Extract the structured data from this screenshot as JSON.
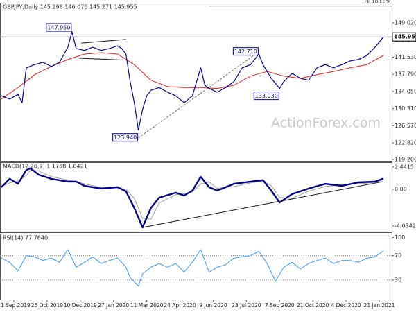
{
  "chart_data": [
    {
      "type": "line",
      "title": "GBPJPY,Daily  145.298 146.076 145.271 145.955",
      "watermark": "ActionForex.com",
      "xlim": [
        0,
        376
      ],
      "ylim": [
        118.9,
        153.4
      ],
      "yticks": [
        {
          "value": 149.02,
          "label": "149.020"
        },
        {
          "value": 145.27,
          "label": "145.270"
        },
        {
          "value": 141.53,
          "label": "141.530"
        },
        {
          "value": 137.79,
          "label": "137.790"
        },
        {
          "value": 134.05,
          "label": "134.050"
        },
        {
          "value": 130.31,
          "label": "130.310"
        },
        {
          "value": 126.57,
          "label": "126.570"
        },
        {
          "value": 122.82,
          "label": "122.820"
        },
        {
          "value": 119.2,
          "label": "119.200"
        }
      ],
      "series": [
        {
          "name": "GBPJPY",
          "color": "#00008b",
          "width": 1.2,
          "x": [
            0,
            8,
            16,
            20,
            24,
            32,
            40,
            48,
            56,
            64,
            68,
            72,
            80,
            88,
            96,
            104,
            112,
            116,
            120,
            124,
            128,
            132,
            136,
            140,
            144,
            152,
            160,
            168,
            176,
            184,
            192,
            196,
            200,
            208,
            216,
            224,
            232,
            240,
            248,
            252,
            260,
            268,
            272,
            280,
            288,
            296,
            304,
            312,
            320,
            328,
            336,
            344,
            352,
            360,
            368
          ],
          "values": [
            133.1,
            132.4,
            133.4,
            131.6,
            139.2,
            139.9,
            140.4,
            139.5,
            140.4,
            143.7,
            147.1,
            143.4,
            143.0,
            143.7,
            143.0,
            143.4,
            144.0,
            143.4,
            142.2,
            136.2,
            131.6,
            125.6,
            130.1,
            133.1,
            134.3,
            134.9,
            133.9,
            133.1,
            131.6,
            133.1,
            139.2,
            135.4,
            134.7,
            133.9,
            134.9,
            136.2,
            139.2,
            139.9,
            142.2,
            139.9,
            136.9,
            134.7,
            136.2,
            138.0,
            136.9,
            136.5,
            139.2,
            139.9,
            139.2,
            139.9,
            140.7,
            141.0,
            141.9,
            143.7,
            145.955
          ]
        },
        {
          "name": "MA",
          "color": "#e02020",
          "width": 1,
          "x": [
            0,
            16,
            32,
            48,
            64,
            80,
            96,
            112,
            128,
            144,
            160,
            176,
            192,
            208,
            224,
            240,
            256,
            272,
            288,
            304,
            320,
            336,
            352,
            368
          ],
          "values": [
            132.4,
            134.9,
            137.7,
            139.5,
            141.0,
            142.2,
            142.5,
            142.2,
            139.9,
            136.5,
            135.1,
            134.9,
            134.9,
            134.7,
            135.4,
            137.4,
            138.4,
            137.4,
            136.9,
            137.7,
            138.4,
            139.2,
            139.9,
            141.9
          ]
        }
      ],
      "annotations": [
        {
          "value": 147.95,
          "label": "147.950",
          "x": 68
        },
        {
          "value": 142.71,
          "label": "142.710",
          "x": 248
        },
        {
          "value": 133.03,
          "label": "133.030",
          "x": 268
        },
        {
          "value": 123.94,
          "label": "123.940",
          "x": 132
        }
      ],
      "level": {
        "value": 152.7,
        "label": "FE 100.0%",
        "x": 200
      },
      "last": {
        "value": 145.955,
        "label": "145.955"
      },
      "trendlines": [
        {
          "points": [
            [
              132,
              123.94
            ],
            [
              248,
              142.71
            ]
          ],
          "dashed": true
        },
        {
          "points": [
            [
              77,
              144.6
            ],
            [
              120,
              145.4
            ]
          ],
          "dashed": false
        },
        {
          "points": [
            [
              75,
              141.3
            ],
            [
              118,
              140.9
            ]
          ],
          "dashed": false
        }
      ]
    },
    {
      "type": "line",
      "title": "MACD(12,26,9) 1.1758 1.0421",
      "xlim": [
        0,
        376
      ],
      "ylim": [
        -4.73,
        2.97
      ],
      "yticks": [
        2.4415,
        {
          "value": 0,
          "label": "0.00"
        },
        -4.0342
      ],
      "series": [
        {
          "name": "MACD",
          "color": "#00008b",
          "width": 2.4,
          "x": [
            0,
            8,
            16,
            24,
            28,
            36,
            48,
            64,
            72,
            80,
            96,
            112,
            120,
            128,
            136,
            144,
            152,
            168,
            176,
            184,
            192,
            200,
            208,
            224,
            240,
            252,
            260,
            268,
            280,
            296,
            312,
            328,
            344,
            360,
            368
          ],
          "values": [
            0.23,
            1.15,
            0.6,
            2.1,
            2.3,
            1.6,
            1.15,
            0.84,
            0.84,
            0.38,
            0.08,
            0.23,
            -0.23,
            -2.06,
            -4.2,
            -2.06,
            -0.92,
            -0.38,
            -0.69,
            -0.15,
            1.37,
            0.23,
            -0.15,
            0.6,
            0.84,
            1.0,
            -0.15,
            -1.45,
            -0.53,
            0.08,
            0.6,
            0.38,
            0.76,
            0.84,
            1.1758
          ]
        },
        {
          "name": "Signal",
          "color": "#a0a0a0",
          "width": 1,
          "x": [
            0,
            8,
            16,
            24,
            28,
            36,
            48,
            64,
            72,
            80,
            96,
            112,
            120,
            128,
            136,
            144,
            152,
            168,
            176,
            184,
            192,
            200,
            208,
            224,
            240,
            252,
            260,
            268,
            280,
            296,
            312,
            328,
            344,
            360,
            368
          ],
          "values": [
            0.3,
            0.7,
            0.9,
            1.5,
            2.1,
            2.0,
            1.4,
            1.0,
            0.85,
            0.6,
            0.2,
            0.15,
            0.0,
            -1.0,
            -3.2,
            -3.3,
            -1.5,
            -0.6,
            -0.5,
            -0.3,
            0.6,
            0.8,
            0.1,
            0.3,
            0.7,
            0.9,
            0.4,
            -0.9,
            -1.0,
            -0.2,
            0.3,
            0.5,
            0.6,
            0.75,
            1.0421
          ]
        }
      ],
      "trendlines": [
        {
          "points": [
            [
              136,
              -4.2
            ],
            [
              368,
              0.85
            ]
          ],
          "dashed": false
        }
      ]
    },
    {
      "type": "line",
      "title": "RSI(14) 77.7640",
      "xlim": [
        0,
        376
      ],
      "ylim": [
        -2,
        106
      ],
      "yticks": [
        100,
        70,
        30
      ],
      "levels": [
        70,
        30
      ],
      "xticks": [
        {
          "value": 12,
          "label": "11 Sep 2019"
        },
        {
          "value": 44,
          "label": "25 Oct 2019"
        },
        {
          "value": 76,
          "label": "10 Dec 2019"
        },
        {
          "value": 108,
          "label": "27 Jan 2020"
        },
        {
          "value": 140,
          "label": "11 Mar 2020"
        },
        {
          "value": 172,
          "label": "24 Apr 2020"
        },
        {
          "value": 204,
          "label": "9 Jun 2020"
        },
        {
          "value": 236,
          "label": "23 Jul 2020"
        },
        {
          "value": 268,
          "label": "7 Sep 2020"
        },
        {
          "value": 300,
          "label": "21 Oct 2020"
        },
        {
          "value": 332,
          "label": "4 Dec 2020"
        },
        {
          "value": 364,
          "label": "21 Jan 2021"
        }
      ],
      "series": [
        {
          "name": "RSI",
          "color": "#3399ff",
          "width": 1,
          "x": [
            0,
            8,
            16,
            24,
            32,
            40,
            48,
            56,
            64,
            72,
            80,
            88,
            96,
            104,
            112,
            120,
            124,
            132,
            136,
            144,
            152,
            160,
            168,
            176,
            184,
            192,
            200,
            208,
            216,
            224,
            232,
            240,
            248,
            256,
            264,
            272,
            280,
            288,
            296,
            304,
            312,
            320,
            328,
            336,
            344,
            352,
            360,
            368
          ],
          "values": [
            66,
            59,
            45,
            70,
            68,
            62,
            66,
            59,
            80,
            51,
            59,
            68,
            57,
            62,
            66,
            51,
            34,
            20,
            40,
            51,
            57,
            51,
            57,
            43,
            59,
            80,
            43,
            51,
            55,
            66,
            68,
            70,
            77,
            57,
            28,
            51,
            59,
            48,
            57,
            62,
            66,
            57,
            62,
            62,
            59,
            66,
            68,
            77.764
          ]
        }
      ]
    }
  ]
}
